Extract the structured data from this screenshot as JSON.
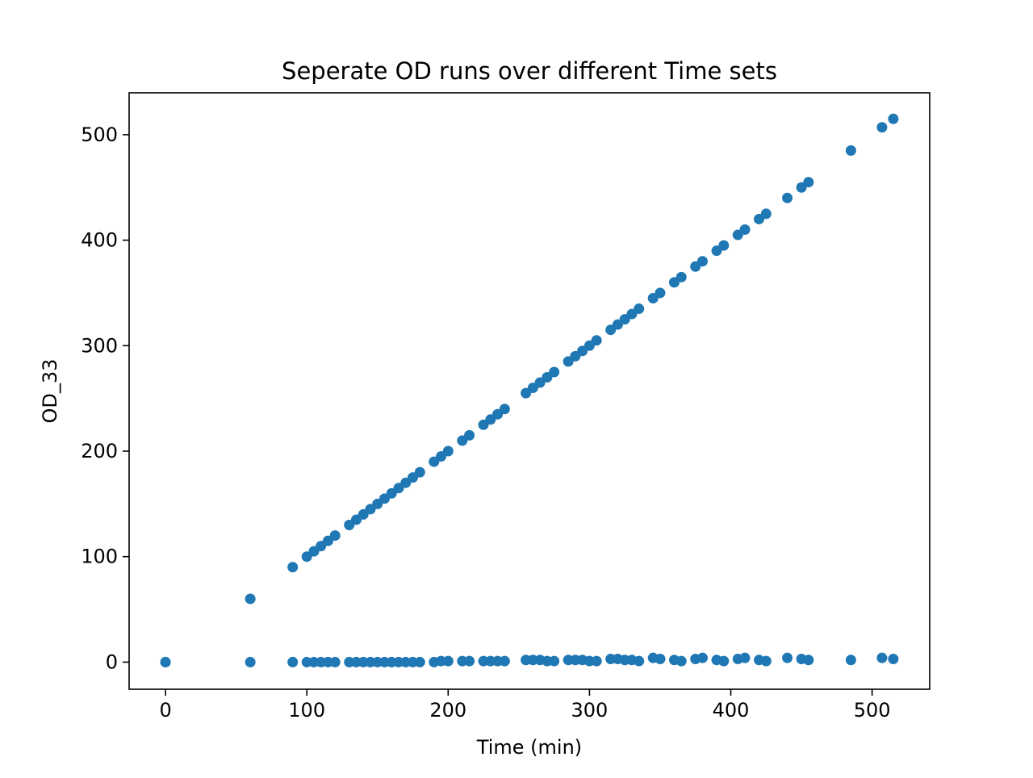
{
  "chart_data": {
    "type": "scatter",
    "title": "Seperate OD runs over different Time sets",
    "xlabel": "Time (min)",
    "ylabel": "OD_33",
    "xlim": [
      -25.75,
      540.75
    ],
    "ylim": [
      -25.7,
      539.7
    ],
    "xticks": [
      0,
      100,
      200,
      300,
      400,
      500
    ],
    "yticks": [
      0,
      100,
      200,
      300,
      400,
      500
    ],
    "grid": false,
    "marker_color": "#1f77b4",
    "series": [
      {
        "x": [
          0,
          0,
          60,
          60,
          90,
          90,
          100,
          100,
          105,
          105,
          110,
          110,
          115,
          115,
          120,
          120,
          130,
          130,
          135,
          135,
          140,
          140,
          145,
          145,
          150,
          150,
          155,
          155,
          160,
          160,
          165,
          165,
          170,
          170,
          175,
          175,
          180,
          180,
          190,
          190,
          195,
          195,
          200,
          200,
          210,
          210,
          215,
          215,
          225,
          225,
          230,
          230,
          235,
          235,
          240,
          240,
          255,
          255,
          260,
          260,
          265,
          265,
          270,
          270,
          275,
          275,
          285,
          285,
          290,
          290,
          295,
          295,
          300,
          300,
          305,
          305,
          315,
          315,
          320,
          320,
          325,
          325,
          330,
          330,
          335,
          335,
          345,
          345,
          350,
          350,
          360,
          360,
          365,
          365,
          375,
          375,
          380,
          380,
          390,
          390,
          395,
          395,
          405,
          405,
          410,
          410,
          420,
          420,
          425,
          425,
          440,
          440,
          450,
          450,
          455,
          455,
          485,
          485,
          507,
          507,
          515,
          515
        ],
        "y": [
          0,
          0,
          60,
          0,
          90,
          0,
          100,
          0,
          105,
          0,
          110,
          0,
          115,
          0,
          120,
          0,
          130,
          0,
          135,
          0,
          140,
          0,
          145,
          0,
          150,
          0,
          155,
          0,
          160,
          0,
          165,
          0,
          170,
          0,
          175,
          0,
          180,
          0,
          190,
          0,
          195,
          1,
          200,
          1,
          210,
          1,
          215,
          1,
          225,
          1,
          230,
          1,
          235,
          1,
          240,
          1,
          255,
          2,
          260,
          2,
          265,
          2,
          270,
          1,
          275,
          1,
          285,
          2,
          290,
          2,
          295,
          2,
          300,
          1,
          305,
          1,
          315,
          3,
          320,
          3,
          325,
          2,
          330,
          2,
          335,
          1,
          345,
          4,
          350,
          3,
          360,
          2,
          365,
          1,
          375,
          3,
          380,
          4,
          390,
          2,
          395,
          1,
          405,
          3,
          410,
          4,
          420,
          2,
          425,
          1,
          440,
          4,
          450,
          3,
          455,
          2,
          485,
          2,
          507,
          4,
          515,
          3
        ]
      }
    ]
  }
}
